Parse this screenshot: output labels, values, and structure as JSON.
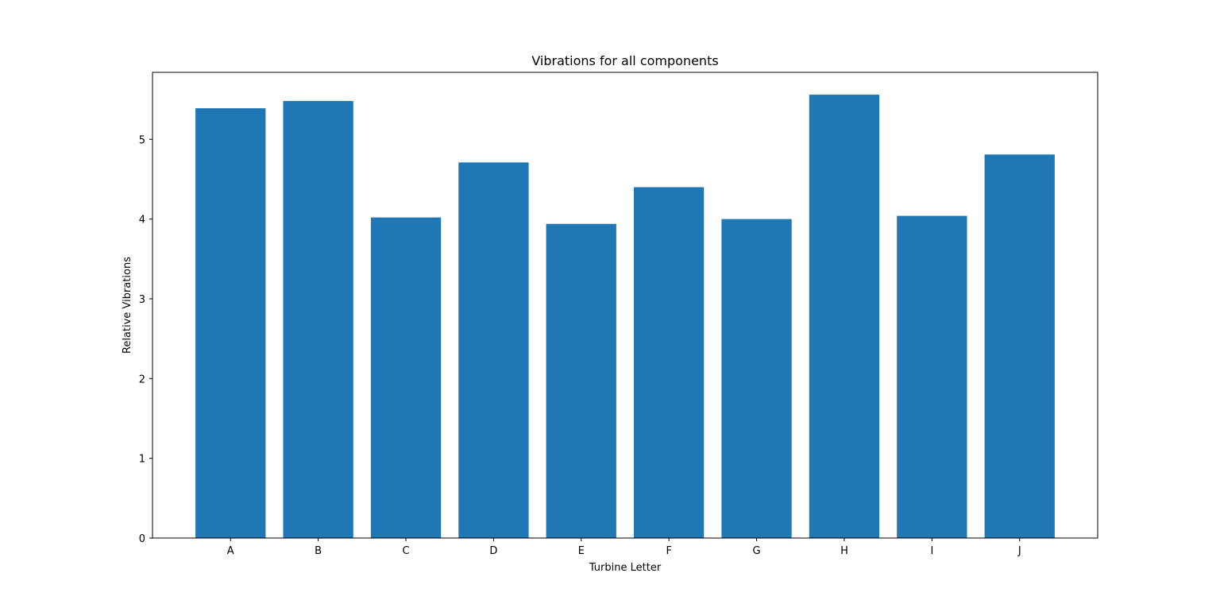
{
  "chart_data": {
    "type": "bar",
    "title": "Vibrations for all components",
    "xlabel": "Turbine Letter",
    "ylabel": "Relative Vibrations",
    "categories": [
      "A",
      "B",
      "C",
      "D",
      "E",
      "F",
      "G",
      "H",
      "I",
      "J"
    ],
    "values": [
      5.39,
      5.48,
      4.02,
      4.71,
      3.94,
      4.4,
      4.0,
      5.56,
      4.04,
      4.81
    ],
    "ylim": [
      0,
      5.84
    ],
    "yticks": [
      0,
      1,
      2,
      3,
      4,
      5
    ],
    "grid": false,
    "legend": "none",
    "bar_color": "#1f77b4"
  }
}
